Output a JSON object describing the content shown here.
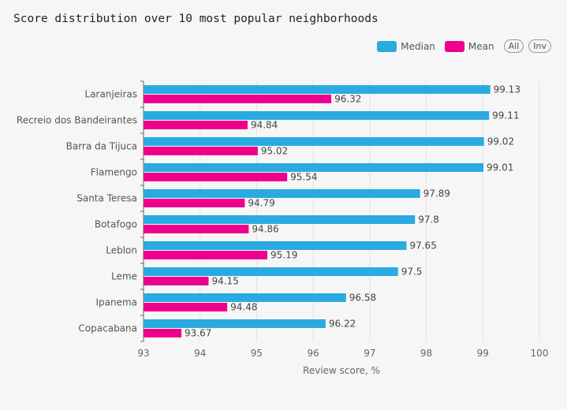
{
  "title": "Score distribution over 10 most popular neighborhoods",
  "legend": {
    "items": [
      {
        "label": "Median",
        "color": "#29abe2"
      },
      {
        "label": "Mean",
        "color": "#ec008c"
      }
    ],
    "buttons": [
      "All",
      "Inv"
    ]
  },
  "chart_data": {
    "type": "bar",
    "orientation": "horizontal",
    "categories": [
      "Laranjeiras",
      "Recreio dos Bandeirantes",
      "Barra da Tijuca",
      "Flamengo",
      "Santa Teresa",
      "Botafogo",
      "Leblon",
      "Leme",
      "Ipanema",
      "Copacabana"
    ],
    "series": [
      {
        "name": "Median",
        "color": "#29abe2",
        "values": [
          99.13,
          99.11,
          99.02,
          99.01,
          97.89,
          97.8,
          97.65,
          97.5,
          96.58,
          96.22
        ]
      },
      {
        "name": "Mean",
        "color": "#ec008c",
        "values": [
          96.32,
          94.84,
          95.02,
          95.54,
          94.79,
          94.86,
          95.19,
          94.15,
          94.48,
          93.67
        ]
      }
    ],
    "xlabel": "Review score, %",
    "xlim": [
      93,
      100
    ],
    "xticks": [
      93,
      94,
      95,
      96,
      97,
      98,
      99,
      100
    ],
    "grid": true,
    "legend_position": "top-right"
  }
}
